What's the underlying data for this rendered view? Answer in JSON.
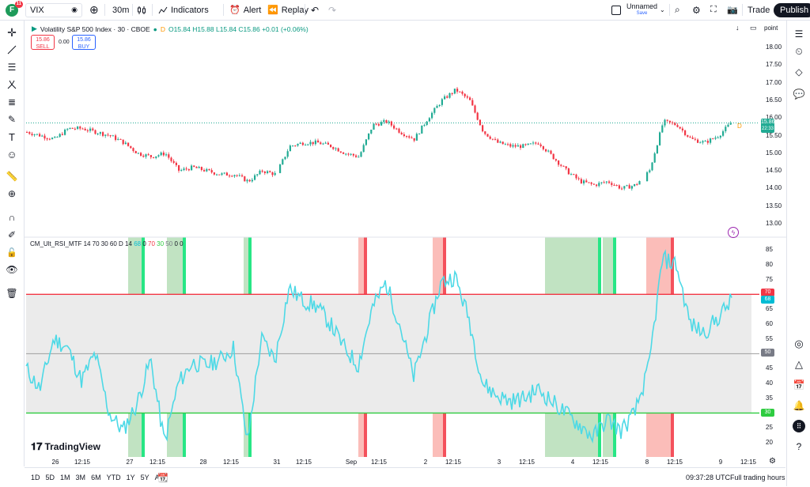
{
  "topbar": {
    "avatar_letter": "F",
    "avatar_badge": "11",
    "symbol": "VIX",
    "interval": "30m",
    "indicators": "Indicators",
    "alert": "Alert",
    "replay": "Replay",
    "layout_name": "Unnamed",
    "layout_status": "Save",
    "trade": "Trade",
    "publish": "Publish"
  },
  "legend": {
    "title": "Volatility S&P 500 Index · 30 · CBOE",
    "d": "D",
    "ohlc": "O15.84 H15.88 L15.84 C15.86 +0.01 (+0.06%)",
    "sell_price": "15.86",
    "sell_label": "SELL",
    "spread": "0.00",
    "buy_price": "15.86",
    "buy_label": "BUY",
    "right_label": "point"
  },
  "price_axis": {
    "labels": [
      "18.00",
      "17.50",
      "17.00",
      "16.50",
      "16.00",
      "15.50",
      "15.00",
      "14.50",
      "14.00",
      "13.50",
      "13.00"
    ],
    "current_price": "15.86",
    "countdown": "22:33"
  },
  "rsi": {
    "legend_name": "CM_Ult_RSI_MTF 14 70 30 60 D 14",
    "legend_vals": [
      "68",
      "0",
      "70",
      "30",
      "50",
      "0",
      "0"
    ],
    "axis_labels": [
      "85",
      "80",
      "75",
      "70",
      "65",
      "60",
      "55",
      "50",
      "45",
      "40",
      "35",
      "30",
      "25",
      "20"
    ],
    "tag_70": "70",
    "tag_68": "68",
    "tag_50": "50",
    "tag_30": "30"
  },
  "time_axis": {
    "labels": [
      "26",
      "12:15",
      "27",
      "12:15",
      "28",
      "12:15",
      "31",
      "12:15",
      "Sep",
      "12:15",
      "2",
      "12:15",
      "3",
      "12:15",
      "4",
      "12:15",
      "8",
      "12:15",
      "9",
      "12:15"
    ]
  },
  "bottombar": {
    "ranges": [
      "1D",
      "5D",
      "1M",
      "3M",
      "6M",
      "YTD",
      "1Y",
      "5Y",
      "All"
    ],
    "time": "09:37:28 UTC",
    "session": "Full trading hours"
  },
  "logo": "TradingView",
  "colors": {
    "up": "#22ab94",
    "down": "#f23645",
    "rsi_line": "#4dd9e6",
    "overbought": "#f23645",
    "oversold": "#2ecc40"
  },
  "chart_data": {
    "type": "candlestick",
    "price_axis_range": [
      12.9,
      18.2
    ],
    "close_points": [
      15.6,
      15.5,
      15.4,
      15.7,
      15.7,
      15.6,
      15.5,
      15.3,
      15.0,
      14.9,
      15.0,
      14.5,
      14.6,
      14.5,
      14.4,
      14.4,
      14.2,
      14.5,
      14.4,
      15.2,
      15.3,
      15.3,
      15.2,
      15.0,
      14.9,
      15.8,
      15.9,
      15.6,
      15.4,
      16.0,
      16.5,
      16.8,
      16.5,
      15.6,
      15.3,
      15.2,
      15.2,
      15.3,
      14.9,
      14.5,
      14.2,
      14.1,
      14.2,
      14.0,
      14.1,
      14.5,
      15.9,
      15.8,
      15.4,
      15.3,
      15.5,
      15.9
    ],
    "rsi_range": [
      17,
      87
    ],
    "rsi_points": [
      45,
      38,
      55,
      52,
      41,
      50,
      30,
      24,
      33,
      48,
      20,
      40,
      47,
      46,
      48,
      52,
      20,
      55,
      48,
      72,
      68,
      66,
      60,
      52,
      46,
      65,
      74,
      60,
      42,
      58,
      74,
      76,
      62,
      40,
      36,
      34,
      35,
      38,
      34,
      30,
      26,
      22,
      28,
      24,
      30,
      45,
      82,
      80,
      60,
      57,
      62,
      68
    ]
  }
}
